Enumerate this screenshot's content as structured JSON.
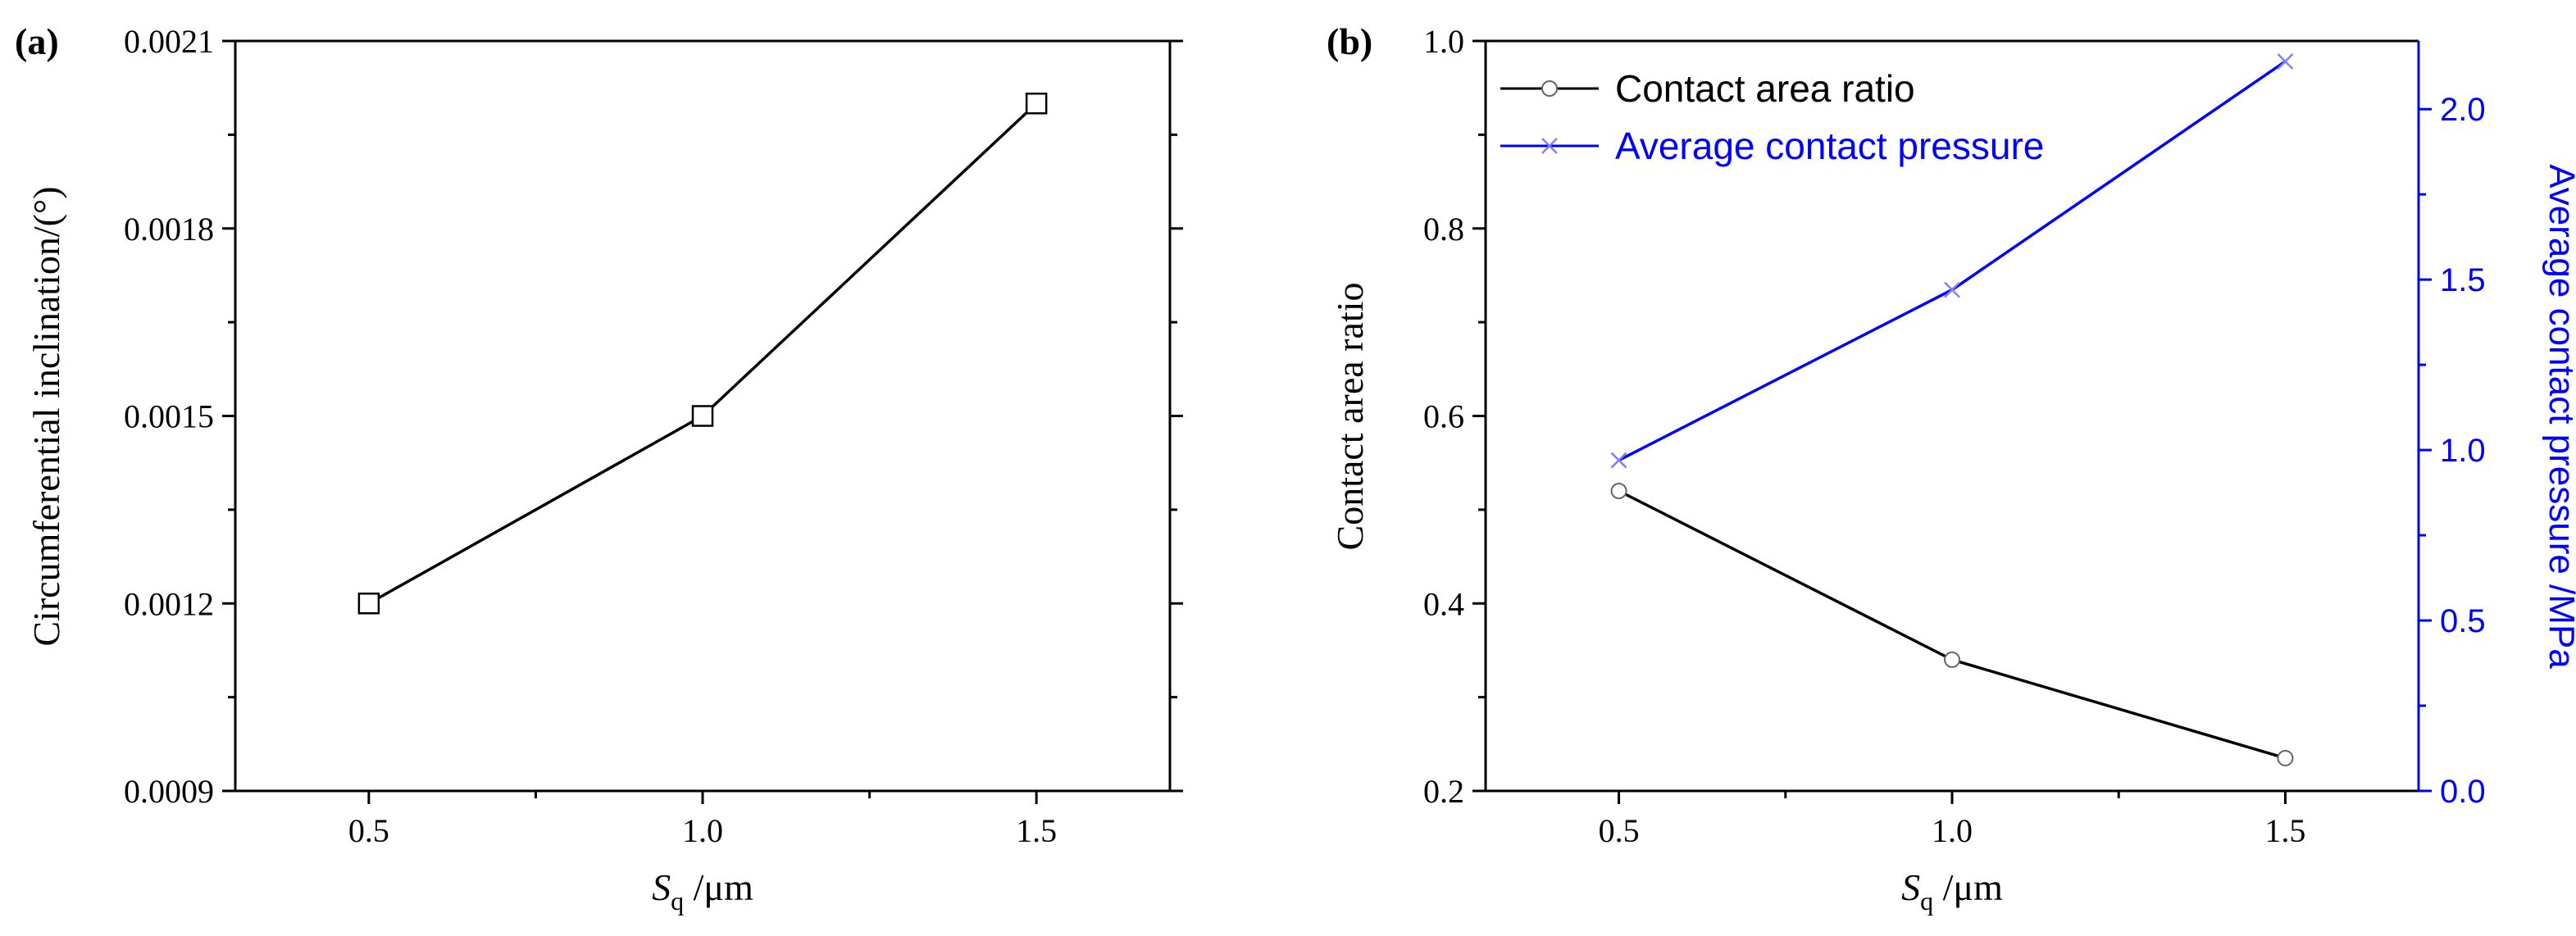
{
  "chart_data": [
    {
      "type": "line",
      "panel_label": "(a)",
      "xlabel_main": "S",
      "xlabel_sub": "q",
      "xlabel_unit": " /μm",
      "ylabel": "Circumferential inclination/(°)",
      "x": [
        0.5,
        1.0,
        1.5
      ],
      "xlim": [
        0.3,
        1.7
      ],
      "ylim": [
        0.0009,
        0.0021
      ],
      "xticks": [
        0.5,
        1.0,
        1.5
      ],
      "xtick_labels": [
        "0.5",
        "1.0",
        "1.5"
      ],
      "yticks": [
        0.0009,
        0.0012,
        0.0015,
        0.0018,
        0.0021
      ],
      "ytick_labels": [
        "0.0009",
        "0.0012",
        "0.0015",
        "0.0018",
        "0.0021"
      ],
      "series": [
        {
          "name": "Circumferential inclination",
          "values": [
            0.0012,
            0.0015,
            0.002
          ],
          "color": "#000000",
          "marker": "square"
        }
      ]
    },
    {
      "type": "line",
      "panel_label": "(b)",
      "xlabel_main": "S",
      "xlabel_sub": "q",
      "xlabel_unit": " /μm",
      "ylabel": "Contact area ratio",
      "ylabel_right": "Average contact pressure /MPa",
      "x": [
        0.5,
        1.0,
        1.5
      ],
      "xlim": [
        0.3,
        1.7
      ],
      "ylim": [
        0.2,
        1.0
      ],
      "ylim_right": [
        0.0,
        2.2
      ],
      "xticks": [
        0.5,
        1.0,
        1.5
      ],
      "xtick_labels": [
        "0.5",
        "1.0",
        "1.5"
      ],
      "yticks": [
        0.2,
        0.4,
        0.6,
        0.8,
        1.0
      ],
      "ytick_labels": [
        "0.2",
        "0.4",
        "0.6",
        "0.8",
        "1.0"
      ],
      "yticks_right": [
        0.0,
        0.5,
        1.0,
        1.5,
        2.0
      ],
      "ytick_labels_right": [
        "0.0",
        "0.5",
        "1.0",
        "1.5",
        "2.0"
      ],
      "legend_position": "top-left",
      "series": [
        {
          "name": "Contact area ratio",
          "values": [
            0.52,
            0.34,
            0.235
          ],
          "color": "#000000",
          "marker": "circle",
          "axis": "left"
        },
        {
          "name": "Average contact pressure",
          "values": [
            0.97,
            1.47,
            2.14
          ],
          "color": "#0000ff",
          "marker": "cross",
          "axis": "right"
        }
      ]
    }
  ]
}
